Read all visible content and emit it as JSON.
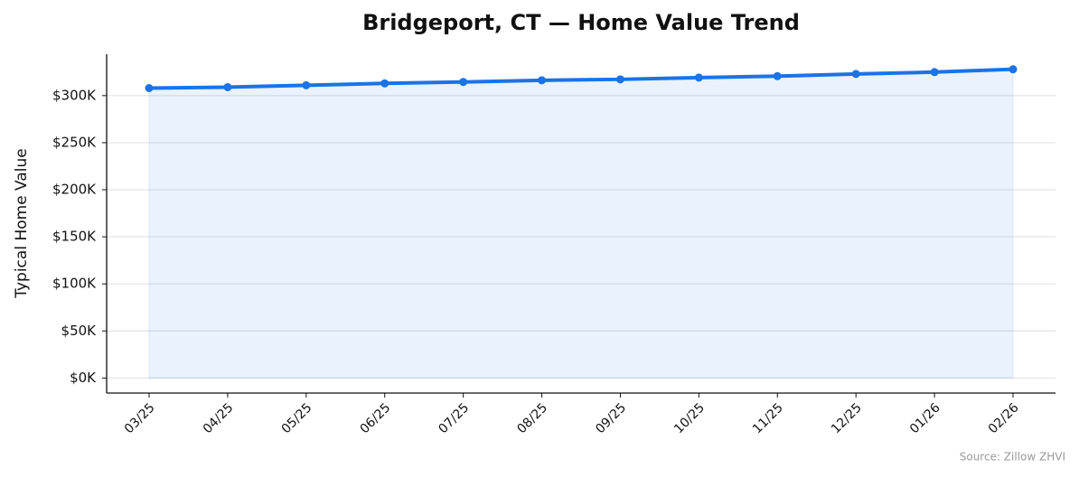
{
  "chart_data": {
    "type": "line",
    "title": "Bridgeport, CT — Home Value Trend",
    "y_label": "Typical Home Value",
    "source": "Source: Zillow ZHVI",
    "categories": [
      "03/25",
      "04/25",
      "05/25",
      "06/25",
      "07/25",
      "08/25",
      "09/25",
      "10/25",
      "11/25",
      "12/25",
      "01/26",
      "02/26"
    ],
    "series": [
      {
        "name": "Typical Home Value",
        "color": "#1a73e8",
        "values": [
          308000,
          309000,
          311000,
          313000,
          314500,
          316300,
          317300,
          319200,
          320700,
          323000,
          325000,
          328000
        ]
      }
    ],
    "area_fill": true,
    "grid": true,
    "ylim": [
      -16000,
      344000
    ],
    "yticks": [
      {
        "value": 0,
        "label": "$0K"
      },
      {
        "value": 50000,
        "label": "$50K"
      },
      {
        "value": 100000,
        "label": "$100K"
      },
      {
        "value": 150000,
        "label": "$150K"
      },
      {
        "value": 200000,
        "label": "$200K"
      },
      {
        "value": 250000,
        "label": "$250K"
      },
      {
        "value": 300000,
        "label": "$300K"
      }
    ]
  }
}
